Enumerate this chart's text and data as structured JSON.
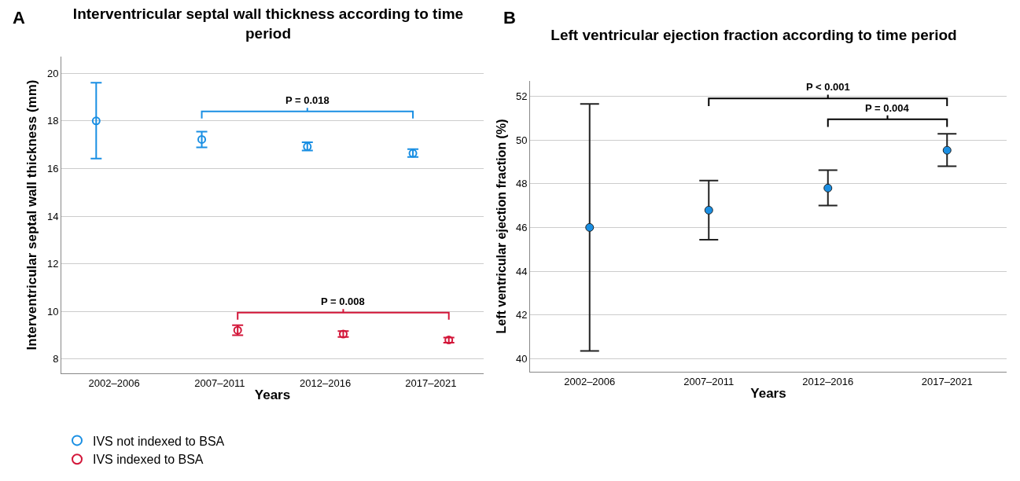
{
  "chart_data": [
    {
      "type": "scatter",
      "title": "Interventricular septal wall thickness according to time period",
      "xlabel": "Years",
      "ylabel": "Interventricular septal wall thickness (mm)",
      "categories": [
        "2002–2006",
        "2007–2011",
        "2012–2016",
        "2017–2021"
      ],
      "series": [
        {
          "name": "IVS not indexed to BSA",
          "color": "#1a8fe3",
          "values": [
            18.0,
            17.22,
            16.92,
            16.64
          ],
          "errors": [
            [
              16.42,
              19.6
            ],
            [
              16.89,
              17.55
            ],
            [
              16.76,
              17.1
            ],
            [
              16.48,
              16.81
            ]
          ]
        },
        {
          "name": "IVS indexed to BSA",
          "color": "#d3173a",
          "values": [
            null,
            9.21,
            9.05,
            8.8
          ],
          "errors": [
            null,
            [
              9.0,
              9.42
            ],
            [
              8.93,
              9.17
            ],
            [
              8.69,
              8.9
            ]
          ]
        }
      ],
      "ylim": [
        7.4,
        20.7
      ],
      "yticks": [
        8,
        10,
        12,
        14,
        16,
        18,
        20
      ],
      "grid": "y",
      "legend": "bottom left",
      "marker": "circle",
      "annotations": [
        "A",
        "P = 0.018",
        "P = 0.008"
      ]
    },
    {
      "type": "scatter",
      "title": "Left ventricular ejection fraction according to time period",
      "xlabel": "Years",
      "ylabel": "Left ventricular ejection fraction (%)",
      "categories": [
        "2002–2006",
        "2007–2011",
        "2012–2016",
        "2017–2021"
      ],
      "series": [
        {
          "color": "#1a8fe3",
          "values": [
            46.0,
            46.79,
            47.8,
            49.53
          ],
          "errors": [
            [
              40.35,
              51.65
            ],
            [
              45.44,
              48.14
            ],
            [
              47.0,
              48.62
            ],
            [
              48.8,
              50.28
            ]
          ]
        }
      ],
      "ylim": [
        39.4,
        52.7
      ],
      "yticks": [
        40,
        42,
        44,
        46,
        48,
        50,
        52
      ],
      "grid": "y",
      "marker": "circle",
      "annotations": [
        "B",
        "P < 0.001",
        "P = 0.004"
      ]
    }
  ]
}
